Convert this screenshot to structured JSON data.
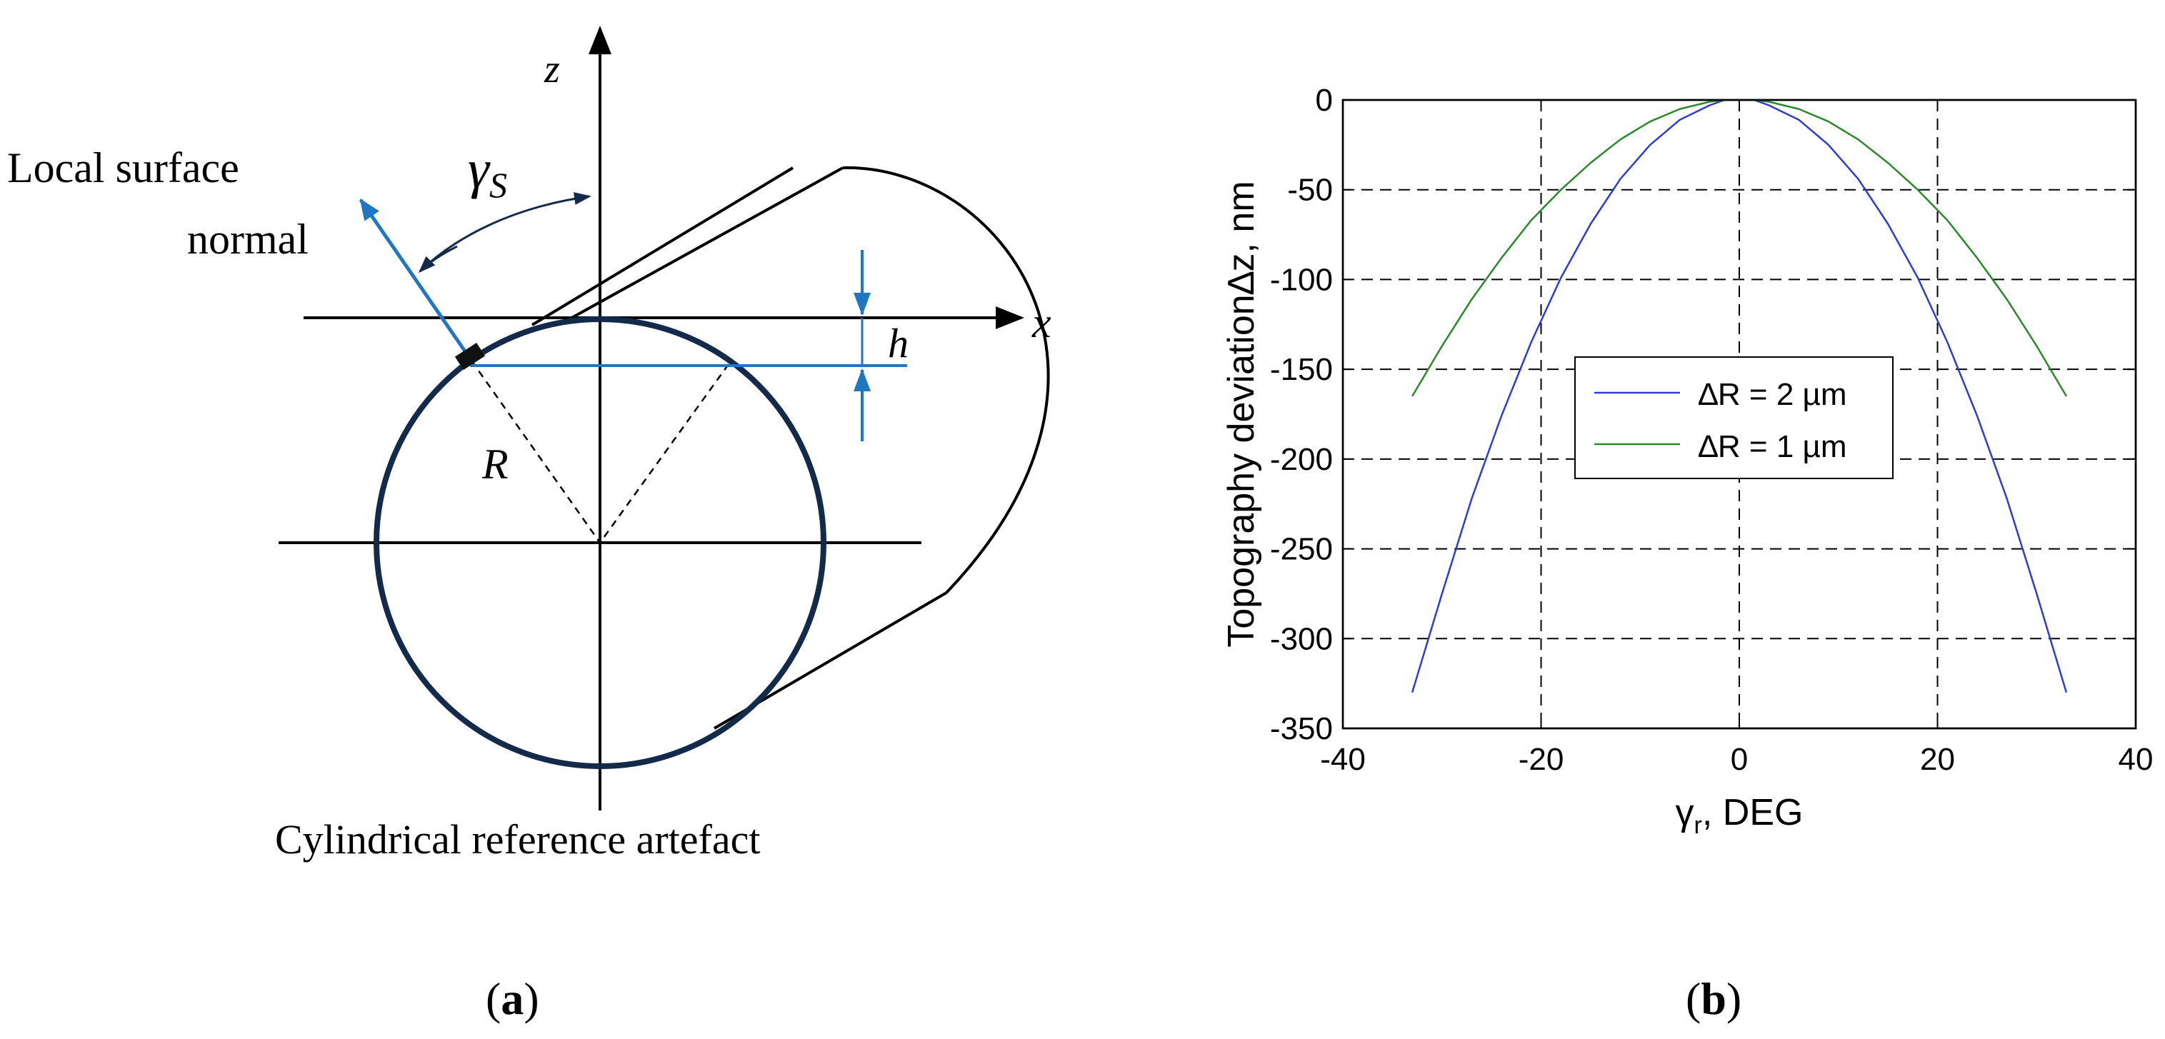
{
  "panel_a": {
    "z_axis_label": "z",
    "x_axis_label": "x",
    "normal_label_line1": "Local surface",
    "normal_label_line2": "normal",
    "angle_symbol": "γ",
    "angle_subscript": "S",
    "h_label": "h",
    "radius_label": "R",
    "caption": "Cylindrical reference artefact",
    "panel_label_open": "(",
    "panel_label_letter": "a",
    "panel_label_close": ")",
    "accent_color": "#1f77c4",
    "circle_color": "#132a4a"
  },
  "panel_b": {
    "panel_label_open": "(",
    "panel_label_letter": "b",
    "panel_label_close": ")"
  },
  "chart_data": {
    "type": "line",
    "ylabel": "Topography deviation∆z, nm",
    "xlabel_symbol": "γ",
    "xlabel_subscript": "r",
    "xlabel_rest": ", DEG",
    "xlim": [
      -40,
      40
    ],
    "ylim": [
      -350,
      0
    ],
    "xticks": [
      -40,
      -20,
      0,
      20,
      40
    ],
    "yticks": [
      0,
      -50,
      -100,
      -150,
      -200,
      -250,
      -300,
      -350
    ],
    "grid": true,
    "legend_position": "center",
    "series": [
      {
        "name": "∆R = 2 µm",
        "color": "#2e3bd6",
        "x": [
          -33,
          -30,
          -27,
          -24,
          -21,
          -18,
          -15,
          -12,
          -9,
          -6,
          -3,
          -1.5,
          1.5,
          3,
          6,
          9,
          12,
          15,
          18,
          21,
          24,
          27,
          30,
          33
        ],
        "y": [
          -330,
          -275,
          -222,
          -176,
          -135,
          -99,
          -69,
          -44,
          -25,
          -11,
          -3,
          0,
          0,
          -3,
          -11,
          -25,
          -44,
          -69,
          -99,
          -135,
          -176,
          -222,
          -275,
          -330
        ]
      },
      {
        "name": "∆R = 1 µm",
        "color": "#2a8a2a",
        "x": [
          -33,
          -30,
          -27,
          -24,
          -21,
          -18,
          -15,
          -12,
          -9,
          -6,
          -3,
          -1.5,
          1.5,
          3,
          6,
          9,
          12,
          15,
          18,
          21,
          24,
          27,
          30,
          33
        ],
        "y": [
          -165,
          -137,
          -111,
          -88,
          -67,
          -50,
          -35,
          -22,
          -12,
          -5,
          -1,
          0,
          0,
          -1,
          -5,
          -12,
          -22,
          -35,
          -50,
          -67,
          -88,
          -111,
          -137,
          -165
        ]
      }
    ]
  }
}
